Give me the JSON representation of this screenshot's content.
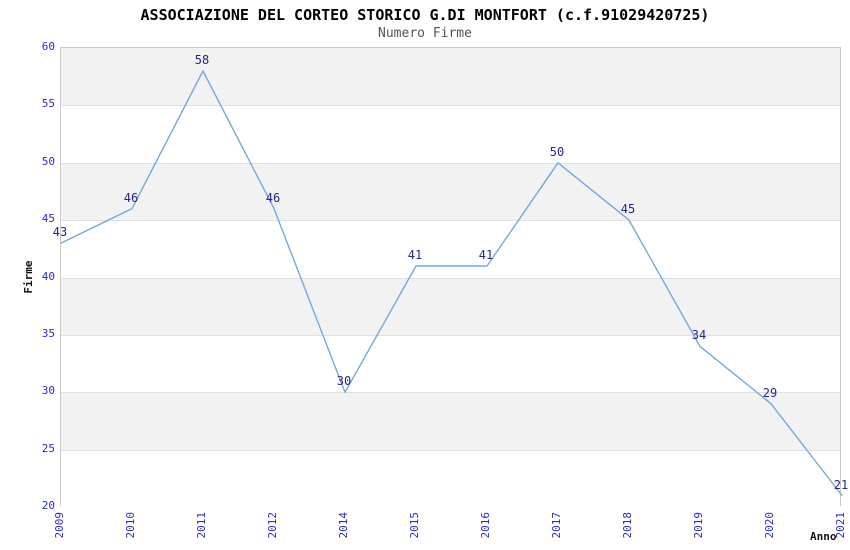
{
  "chart_data": {
    "type": "line",
    "title": "ASSOCIAZIONE DEL CORTEO STORICO G.DI MONTFORT (c.f.91029420725)",
    "subtitle": "Numero Firme",
    "xlabel": "Anno",
    "ylabel": "Firme",
    "categories": [
      "2009",
      "2010",
      "2011",
      "2012",
      "2014",
      "2015",
      "2016",
      "2017",
      "2018",
      "2019",
      "2020",
      "2021"
    ],
    "series": [
      {
        "name": "Numero Firme",
        "values": [
          43,
          46,
          58,
          46,
          30,
          41,
          41,
          50,
          45,
          34,
          29,
          21
        ]
      }
    ],
    "point_labels_visible": true,
    "ylim": [
      20,
      60
    ],
    "ytick_step": 5,
    "yticks": [
      60,
      55,
      50,
      45,
      40,
      35,
      30,
      25,
      20
    ],
    "grid": "horizontal gridlines with alternating shaded bands",
    "legend": "none",
    "colors": {
      "line": "#74a9de",
      "data_label": "#26268c",
      "tick_label": "#2a2ad2",
      "band": "#f2f2f2",
      "gridline": "#e0e0e0",
      "plot_border": "#c9c9c9",
      "title": "#000000",
      "subtitle": "#555555",
      "axis_label": "#111111",
      "background": "#ffffff"
    }
  }
}
